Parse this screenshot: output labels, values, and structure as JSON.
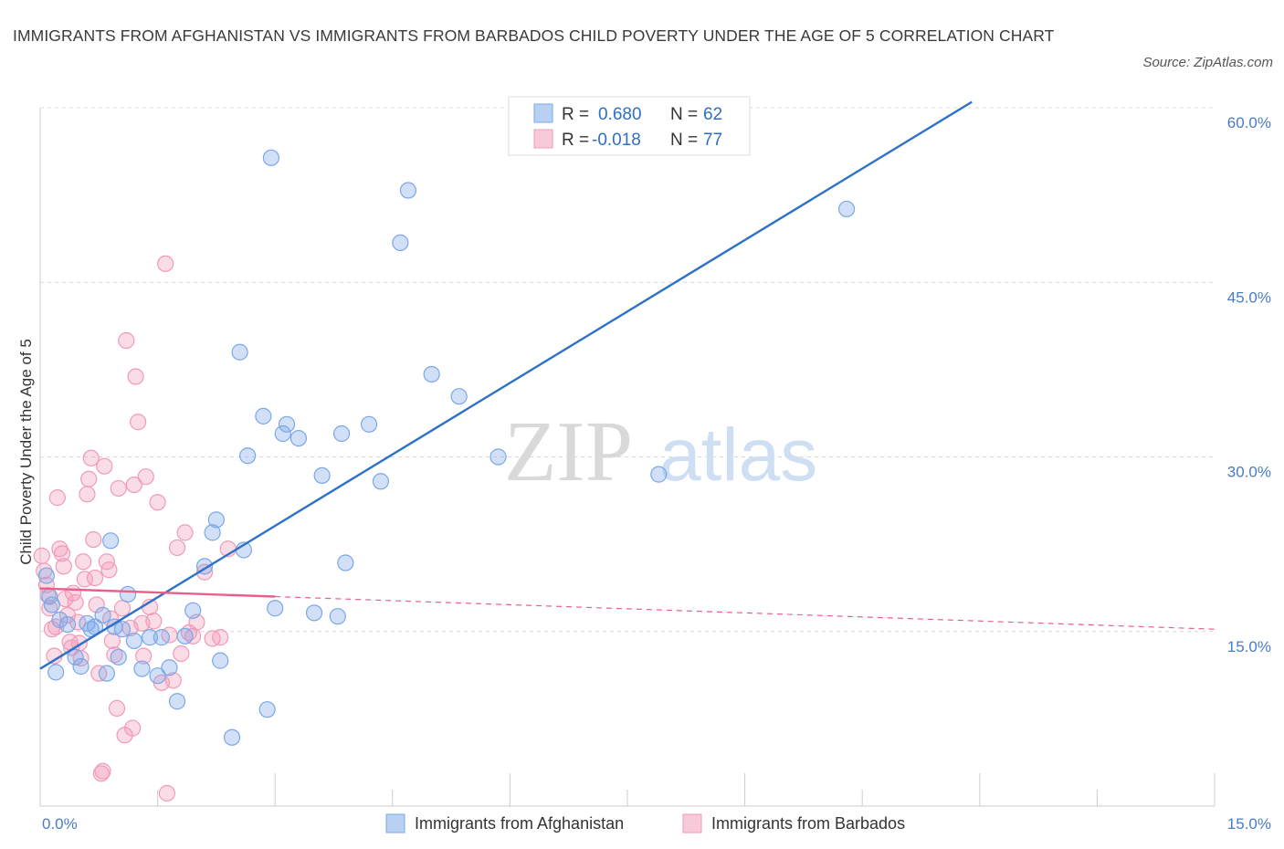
{
  "title": "IMMIGRANTS FROM AFGHANISTAN VS IMMIGRANTS FROM BARBADOS CHILD POVERTY UNDER THE AGE OF 5 CORRELATION CHART",
  "source": "Source: ZipAtlas.com",
  "watermark": {
    "zip": "ZIP",
    "atlas": "atlas"
  },
  "legend_box": {
    "rows": [
      {
        "r_label": "R =",
        "r_value": "0.680",
        "n_label": "N =",
        "n_value": "62"
      },
      {
        "r_label": "R =",
        "r_value": "-0.018",
        "n_label": "N =",
        "n_value": "77"
      }
    ]
  },
  "chart_data": {
    "type": "scatter",
    "title": "IMMIGRANTS FROM AFGHANISTAN VS IMMIGRANTS FROM BARBADOS CHILD POVERTY UNDER THE AGE OF 5 CORRELATION CHART",
    "xlabel": "",
    "ylabel": "Child Poverty Under the Age of 5",
    "xlim": [
      0,
      15
    ],
    "ylim": [
      0,
      60
    ],
    "x_tick_labels": [
      "0.0%",
      "15.0%"
    ],
    "y_ticks": [
      15,
      30,
      45,
      60
    ],
    "y_tick_labels": [
      "15.0%",
      "30.0%",
      "45.0%",
      "60.0%"
    ],
    "grid": "horizontal dashed",
    "legend_position": "bottom-center",
    "colors": {
      "afghanistan": "#7aa7e8",
      "afghanistan_line": "#2d72c8",
      "barbados": "#f19ab8",
      "barbados_line": "#e8608a"
    },
    "series": [
      {
        "name": "Immigrants from Afghanistan",
        "r": 0.68,
        "n": 62,
        "trend": {
          "x": [
            0,
            11.9
          ],
          "y": [
            11.8,
            60.5
          ]
        },
        "points": [
          [
            0.08,
            19.8
          ],
          [
            0.12,
            18.0
          ],
          [
            0.15,
            17.3
          ],
          [
            0.2,
            11.5
          ],
          [
            0.25,
            16.0
          ],
          [
            0.35,
            15.6
          ],
          [
            0.45,
            12.8
          ],
          [
            0.52,
            12.0
          ],
          [
            0.6,
            15.7
          ],
          [
            0.65,
            15.2
          ],
          [
            0.7,
            15.4
          ],
          [
            0.8,
            16.4
          ],
          [
            0.85,
            11.4
          ],
          [
            0.9,
            22.8
          ],
          [
            0.95,
            15.4
          ],
          [
            1.0,
            12.8
          ],
          [
            1.05,
            15.2
          ],
          [
            1.12,
            18.2
          ],
          [
            1.2,
            14.2
          ],
          [
            1.3,
            11.8
          ],
          [
            1.4,
            14.5
          ],
          [
            1.5,
            11.2
          ],
          [
            1.55,
            14.5
          ],
          [
            1.65,
            11.9
          ],
          [
            1.75,
            9.0
          ],
          [
            1.85,
            14.6
          ],
          [
            1.95,
            16.8
          ],
          [
            2.1,
            20.6
          ],
          [
            2.2,
            23.5
          ],
          [
            2.25,
            24.6
          ],
          [
            2.3,
            12.5
          ],
          [
            2.45,
            5.9
          ],
          [
            2.55,
            39.0
          ],
          [
            2.6,
            22.0
          ],
          [
            2.65,
            30.1
          ],
          [
            2.85,
            33.5
          ],
          [
            2.9,
            8.3
          ],
          [
            2.95,
            55.7
          ],
          [
            3.0,
            17.0
          ],
          [
            3.1,
            32.0
          ],
          [
            3.15,
            32.8
          ],
          [
            3.3,
            31.6
          ],
          [
            3.5,
            16.6
          ],
          [
            3.6,
            28.4
          ],
          [
            3.8,
            16.3
          ],
          [
            3.85,
            32.0
          ],
          [
            3.9,
            20.9
          ],
          [
            4.2,
            32.8
          ],
          [
            4.35,
            27.9
          ],
          [
            4.6,
            48.4
          ],
          [
            4.7,
            52.9
          ],
          [
            5.0,
            37.1
          ],
          [
            5.35,
            35.2
          ],
          [
            5.85,
            30.0
          ],
          [
            7.9,
            28.5
          ],
          [
            10.3,
            51.3
          ]
        ]
      },
      {
        "name": "Immigrants from Barbados",
        "r": -0.018,
        "n": 77,
        "trend": {
          "x": [
            0,
            3.0
          ],
          "y": [
            18.7,
            18.0
          ]
        },
        "trend_ext": {
          "x": [
            3.0,
            15.0
          ],
          "y": [
            18.0,
            15.2
          ]
        },
        "points": [
          [
            0.02,
            21.5
          ],
          [
            0.05,
            20.2
          ],
          [
            0.08,
            19.0
          ],
          [
            0.1,
            18.1
          ],
          [
            0.12,
            17.0
          ],
          [
            0.15,
            15.2
          ],
          [
            0.18,
            12.9
          ],
          [
            0.2,
            15.4
          ],
          [
            0.22,
            26.5
          ],
          [
            0.25,
            22.1
          ],
          [
            0.28,
            21.7
          ],
          [
            0.3,
            20.6
          ],
          [
            0.32,
            17.8
          ],
          [
            0.35,
            16.4
          ],
          [
            0.38,
            14.1
          ],
          [
            0.4,
            13.6
          ],
          [
            0.42,
            18.3
          ],
          [
            0.45,
            17.5
          ],
          [
            0.48,
            15.8
          ],
          [
            0.5,
            14.0
          ],
          [
            0.52,
            12.7
          ],
          [
            0.55,
            21.0
          ],
          [
            0.57,
            19.5
          ],
          [
            0.6,
            26.8
          ],
          [
            0.62,
            28.1
          ],
          [
            0.65,
            29.9
          ],
          [
            0.68,
            22.9
          ],
          [
            0.7,
            19.6
          ],
          [
            0.72,
            17.3
          ],
          [
            0.75,
            11.4
          ],
          [
            0.78,
            2.8
          ],
          [
            0.8,
            3.0
          ],
          [
            0.82,
            29.2
          ],
          [
            0.85,
            21.0
          ],
          [
            0.88,
            20.3
          ],
          [
            0.9,
            16.1
          ],
          [
            0.92,
            14.2
          ],
          [
            0.95,
            13.0
          ],
          [
            0.98,
            8.4
          ],
          [
            1.0,
            27.3
          ],
          [
            1.05,
            17.0
          ],
          [
            1.08,
            6.1
          ],
          [
            1.1,
            40.0
          ],
          [
            1.15,
            15.3
          ],
          [
            1.18,
            6.7
          ],
          [
            1.2,
            27.6
          ],
          [
            1.22,
            36.9
          ],
          [
            1.25,
            33.0
          ],
          [
            1.3,
            15.7
          ],
          [
            1.32,
            12.9
          ],
          [
            1.35,
            28.3
          ],
          [
            1.4,
            17.1
          ],
          [
            1.45,
            15.9
          ],
          [
            1.5,
            26.1
          ],
          [
            1.55,
            10.6
          ],
          [
            1.6,
            46.6
          ],
          [
            1.62,
            1.1
          ],
          [
            1.65,
            14.7
          ],
          [
            1.7,
            10.8
          ],
          [
            1.75,
            22.2
          ],
          [
            1.8,
            13.1
          ],
          [
            1.85,
            23.5
          ],
          [
            1.9,
            14.9
          ],
          [
            1.95,
            14.6
          ],
          [
            2.0,
            15.8
          ],
          [
            2.1,
            20.1
          ],
          [
            2.2,
            14.4
          ],
          [
            2.3,
            14.5
          ],
          [
            2.4,
            22.1
          ]
        ]
      }
    ]
  },
  "bottom_legend": {
    "items": [
      {
        "label": "Immigrants from Afghanistan"
      },
      {
        "label": "Immigrants from Barbados"
      }
    ]
  }
}
